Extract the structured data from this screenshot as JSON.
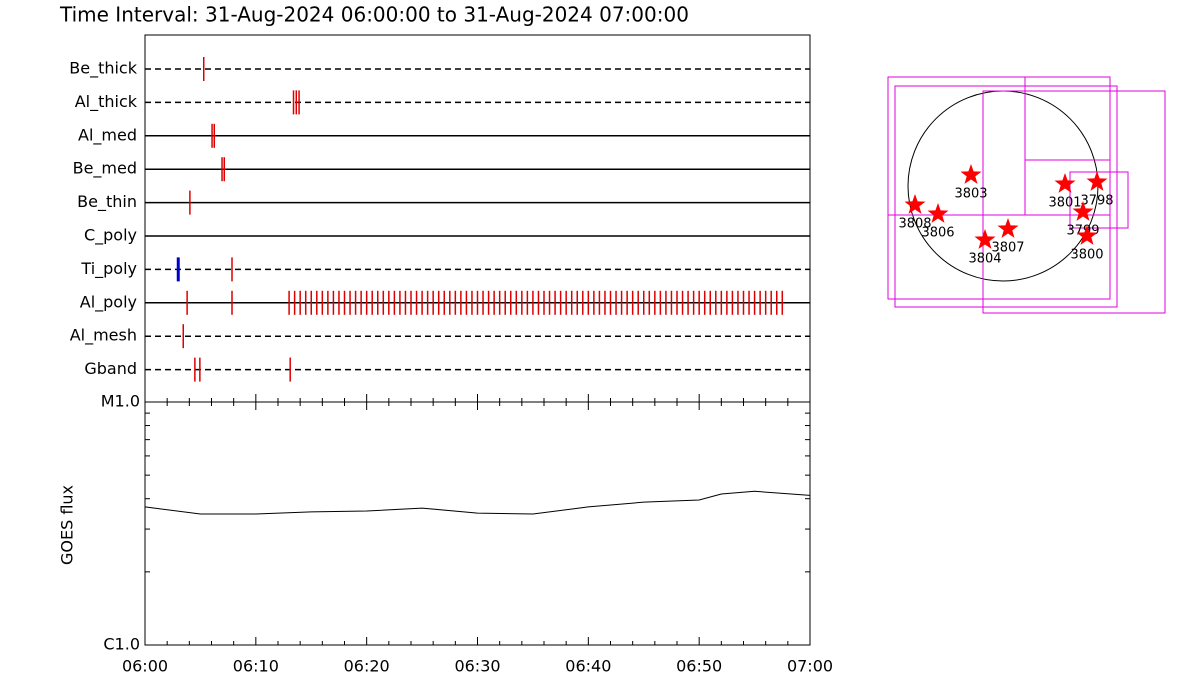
{
  "chart_data": [
    {
      "type": "timeline",
      "title": "Time Interval: 31-Aug-2024 06:00:00 to 31-Aug-2024 07:00:00",
      "xlim": [
        0,
        60
      ],
      "rows": [
        {
          "name": "Be_thick",
          "style": "dashed",
          "times": [
            5.3
          ],
          "colors": [
            "#dd0000"
          ]
        },
        {
          "name": "Al_thick",
          "style": "dashed",
          "times": [
            13.4,
            13.65,
            13.9
          ],
          "colors": [
            "#dd0000",
            "#dd0000",
            "#dd0000"
          ]
        },
        {
          "name": "Al_med",
          "style": "solid",
          "times": [
            6.05,
            6.25
          ],
          "colors": [
            "#dd0000",
            "#dd0000"
          ]
        },
        {
          "name": "Be_med",
          "style": "solid",
          "times": [
            6.95,
            7.15
          ],
          "colors": [
            "#dd0000",
            "#dd0000"
          ]
        },
        {
          "name": "Be_thin",
          "style": "solid",
          "times": [
            4.05
          ],
          "colors": [
            "#dd0000"
          ]
        },
        {
          "name": "C_poly",
          "style": "solid",
          "times": [],
          "colors": []
        },
        {
          "name": "Ti_poly",
          "style": "dashed",
          "times": [
            3.0,
            7.85
          ],
          "colors": [
            "#0000cc",
            "#dd0000"
          ]
        },
        {
          "name": "Al_poly",
          "style": "solid",
          "times": [
            3.8,
            7.85,
            13,
            13.5,
            14,
            14.5,
            15,
            15.5,
            16,
            16.5,
            17,
            17.5,
            18,
            18.5,
            19,
            19.5,
            20,
            20.5,
            21,
            21.5,
            22,
            22.5,
            23,
            23.5,
            24,
            24.5,
            25,
            25.5,
            26,
            26.5,
            27,
            27.5,
            28,
            28.5,
            29,
            29.5,
            30,
            30.5,
            31,
            31.5,
            32,
            32.5,
            33,
            33.5,
            34,
            34.5,
            35,
            35.5,
            36,
            36.5,
            37,
            37.5,
            38,
            38.5,
            39,
            39.5,
            40,
            40.5,
            41,
            41.5,
            42,
            42.5,
            43,
            43.5,
            44,
            44.5,
            45,
            45.5,
            46,
            46.5,
            47,
            47.5,
            48,
            48.5,
            49,
            49.5,
            50,
            50.5,
            51,
            51.5,
            52,
            52.5,
            53,
            53.5,
            54,
            54.5,
            55,
            55.5,
            56,
            56.5,
            57,
            57.5
          ],
          "colors": [
            "#dd0000",
            "#dd0000",
            "#dd0000",
            "#dd0000",
            "#dd0000",
            "#dd0000",
            "#dd0000",
            "#dd0000",
            "#dd0000",
            "#dd0000",
            "#dd0000",
            "#dd0000",
            "#dd0000",
            "#dd0000",
            "#dd0000",
            "#dd0000",
            "#dd0000",
            "#dd0000",
            "#dd0000",
            "#dd0000",
            "#dd0000",
            "#dd0000",
            "#dd0000",
            "#dd0000",
            "#dd0000",
            "#dd0000",
            "#dd0000",
            "#dd0000",
            "#dd0000",
            "#dd0000",
            "#dd0000",
            "#dd0000",
            "#dd0000",
            "#dd0000",
            "#dd0000",
            "#dd0000",
            "#dd0000",
            "#dd0000",
            "#dd0000",
            "#dd0000",
            "#dd0000",
            "#dd0000",
            "#dd0000",
            "#dd0000",
            "#dd0000",
            "#dd0000",
            "#dd0000",
            "#dd0000",
            "#dd0000",
            "#dd0000",
            "#dd0000",
            "#dd0000",
            "#dd0000",
            "#dd0000",
            "#dd0000",
            "#dd0000",
            "#dd0000",
            "#dd0000",
            "#dd0000",
            "#dd0000",
            "#dd0000",
            "#dd0000",
            "#dd0000",
            "#dd0000",
            "#dd0000",
            "#dd0000",
            "#dd0000",
            "#dd0000",
            "#dd0000",
            "#dd0000",
            "#dd0000",
            "#dd0000",
            "#dd0000",
            "#dd0000",
            "#dd0000",
            "#dd0000",
            "#dd0000",
            "#dd0000",
            "#dd0000",
            "#dd0000",
            "#dd0000",
            "#dd0000",
            "#dd0000",
            "#dd0000",
            "#dd0000",
            "#dd0000",
            "#dd0000",
            "#dd0000",
            "#dd0000",
            "#dd0000",
            "#dd0000",
            "#dd0000"
          ]
        },
        {
          "name": "Al_mesh",
          "style": "dashed",
          "times": [
            3.45
          ],
          "colors": [
            "#dd0000"
          ]
        },
        {
          "name": "Gband",
          "style": "dashed",
          "times": [
            4.5,
            4.95,
            13.1
          ],
          "colors": [
            "#dd0000",
            "#dd0000",
            "#dd0000"
          ]
        }
      ]
    },
    {
      "type": "line",
      "ylabel": "GOES flux",
      "log": true,
      "color": "#000000",
      "xlim": [
        0,
        60
      ],
      "xticks": [
        {
          "value": 0,
          "label": "06:00"
        },
        {
          "value": 10,
          "label": "06:10"
        },
        {
          "value": 20,
          "label": "06:20"
        },
        {
          "value": 30,
          "label": "06:30"
        },
        {
          "value": 40,
          "label": "06:40"
        },
        {
          "value": 50,
          "label": "06:50"
        },
        {
          "value": 60,
          "label": "07:00"
        }
      ],
      "xminorticks": [
        2,
        4,
        6,
        8,
        12,
        14,
        16,
        18,
        22,
        24,
        26,
        28,
        32,
        34,
        36,
        38,
        42,
        44,
        46,
        48,
        52,
        54,
        56,
        58
      ],
      "ylim": [
        1e-06,
        1e-05
      ],
      "yticks": [
        {
          "value": 1e-06,
          "label": "C1.0"
        },
        {
          "value": 1e-05,
          "label": "M1.0"
        }
      ],
      "yminorticks": [
        2e-06,
        3e-06,
        4e-06,
        5e-06,
        6e-06,
        7e-06,
        8e-06,
        9e-06
      ],
      "x": [
        0,
        5,
        10,
        15,
        20,
        25,
        30,
        35,
        40,
        45,
        50,
        52,
        55,
        60
      ],
      "values": [
        3.7e-06,
        3.46e-06,
        3.46e-06,
        3.53e-06,
        3.56e-06,
        3.66e-06,
        3.49e-06,
        3.46e-06,
        3.7e-06,
        3.87e-06,
        3.95e-06,
        4.18e-06,
        4.29e-06,
        4.13e-06
      ]
    },
    {
      "type": "map",
      "xlim": [
        -1200,
        1800
      ],
      "ylim": [
        -1300,
        1200
      ],
      "radius": 950,
      "box_color": "#e000e0",
      "boxes": [
        [
          -1150,
          1070,
          1090,
          -1130
        ],
        [
          -1080,
          1140,
          1000,
          -1210
        ],
        [
          -200,
          1620,
          950,
          -1270
        ],
        [
          670,
          1250,
          140,
          -420
        ],
        [
          -1150,
          220,
          1090,
          -290
        ],
        [
          220,
          1070,
          260,
          -290
        ]
      ],
      "point_color": "#ff0000",
      "labels": [
        "3803",
        "3808",
        "3806",
        "3804",
        "3807",
        "3801",
        "3798",
        "3799",
        "3800"
      ],
      "x": [
        -320,
        -880,
        -650,
        -180,
        50,
        620,
        940,
        800,
        840
      ],
      "y": [
        110,
        -190,
        -280,
        -540,
        -430,
        20,
        40,
        -260,
        -500
      ]
    }
  ]
}
